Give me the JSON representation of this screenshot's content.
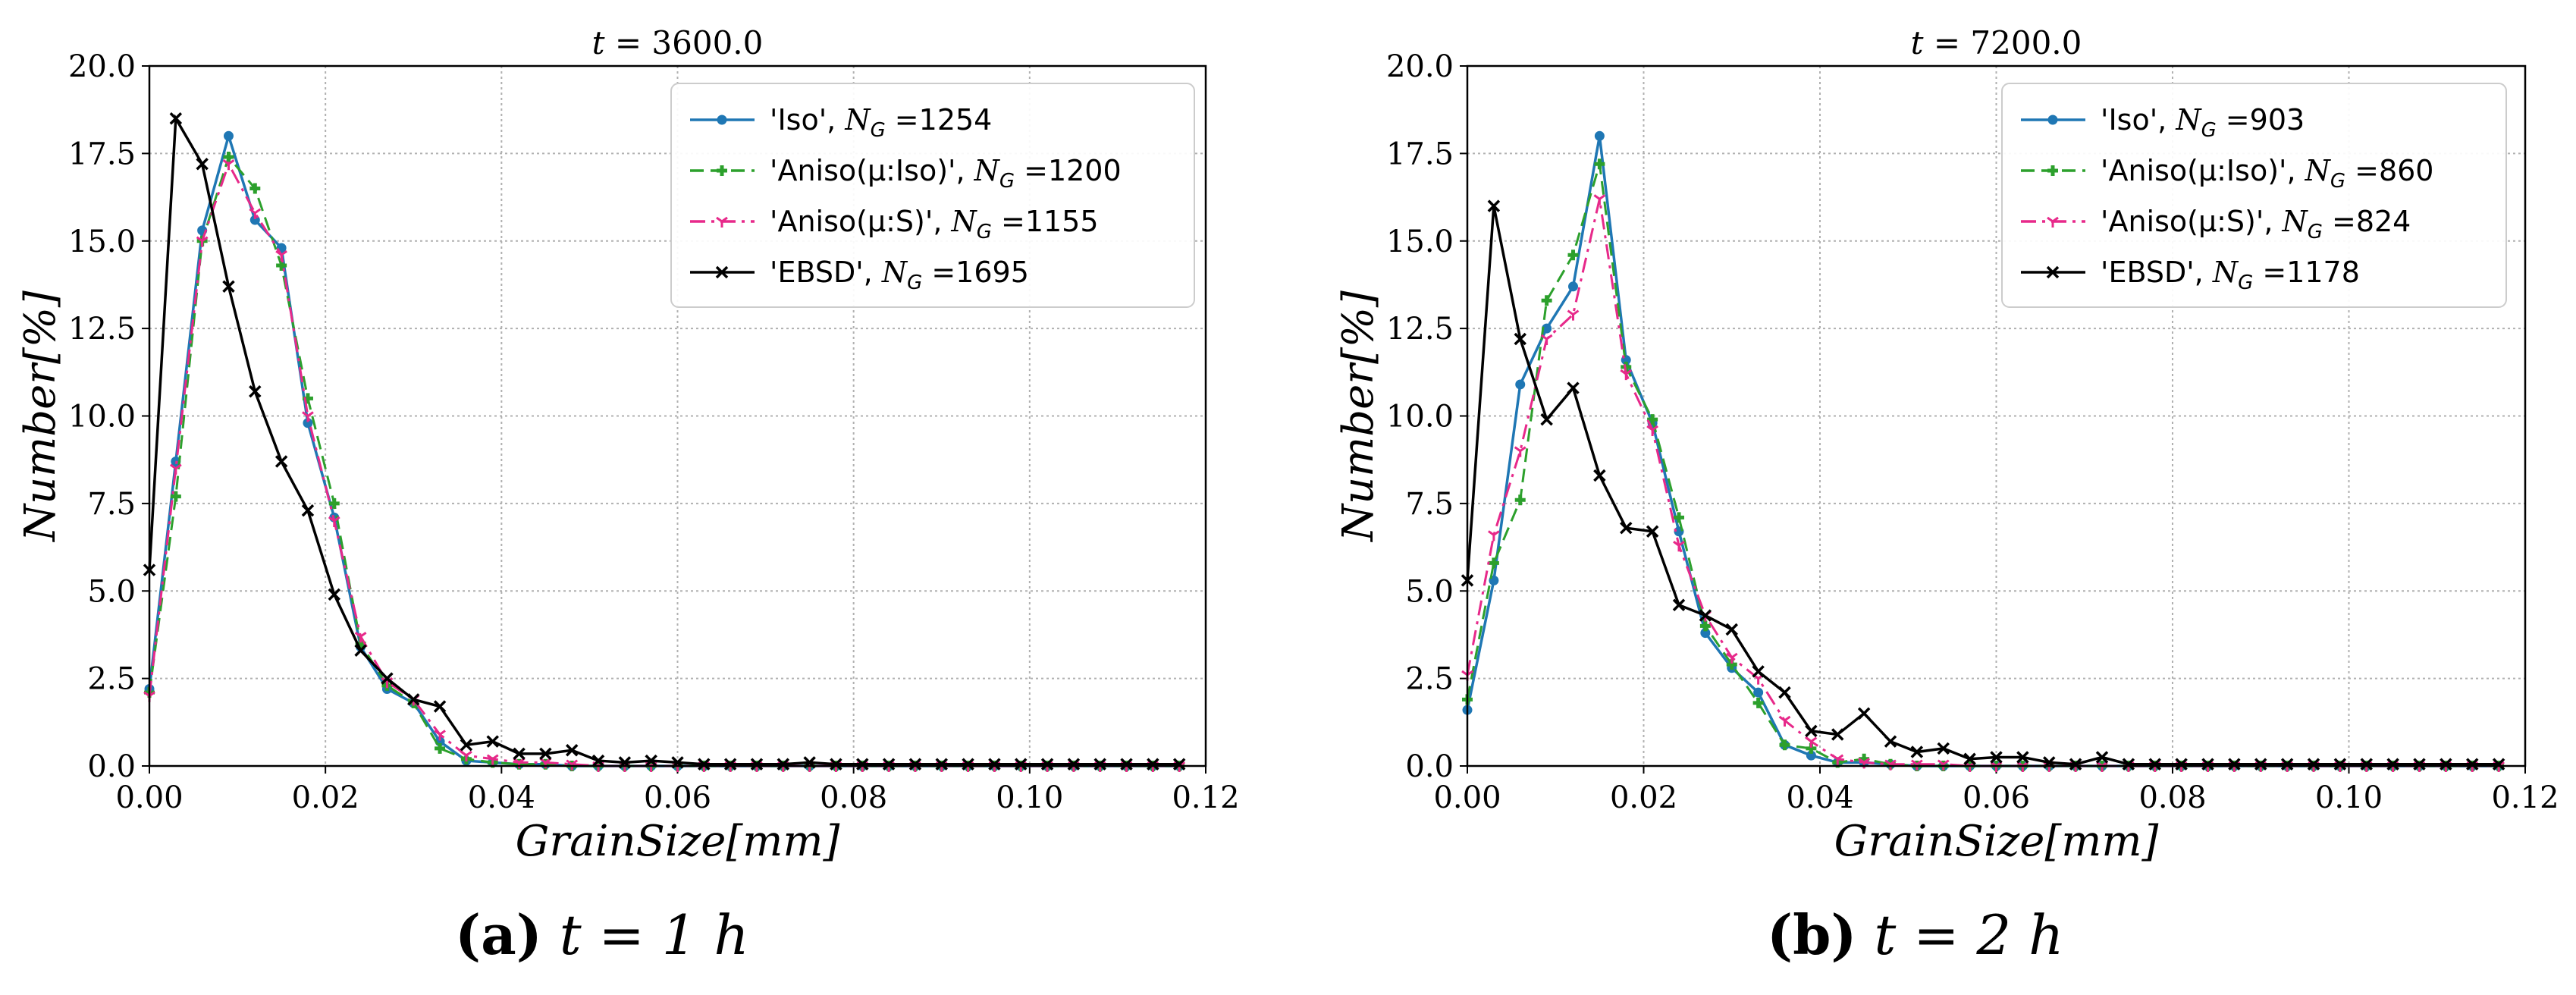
{
  "chart_data": [
    {
      "type": "line",
      "title": "t = 3600.0",
      "xlabel": "GrainSize[mm]",
      "ylabel": "Number[%]",
      "xlim": [
        0,
        0.12
      ],
      "ylim": [
        0,
        20
      ],
      "xticks": [
        "0.00",
        "0.02",
        "0.04",
        "0.06",
        "0.08",
        "0.10",
        "0.12"
      ],
      "yticks": [
        "0.0",
        "2.5",
        "5.0",
        "7.5",
        "10.0",
        "12.5",
        "15.0",
        "17.5",
        "20.0"
      ],
      "grid": true,
      "legend_position": "top-right",
      "series": [
        {
          "name": "'Iso', N_G =1254",
          "color": "#1f77b4",
          "style": "solid",
          "marker": "circle",
          "x": [
            0,
            0.003,
            0.006,
            0.009,
            0.012,
            0.015,
            0.018,
            0.021,
            0.024,
            0.027,
            0.03,
            0.033,
            0.036,
            0.039,
            0.042,
            0.045,
            0.048,
            0.051,
            0.054,
            0.057,
            0.06,
            0.063,
            0.066,
            0.069,
            0.072,
            0.075,
            0.078,
            0.081,
            0.084,
            0.087,
            0.09,
            0.093,
            0.096,
            0.099,
            0.102,
            0.105,
            0.108,
            0.111,
            0.114,
            0.117
          ],
          "y": [
            2.2,
            8.7,
            15.3,
            18.0,
            15.6,
            14.8,
            9.8,
            7.1,
            3.4,
            2.2,
            1.8,
            0.7,
            0.15,
            0.1,
            0.05,
            0.05,
            0.0,
            0.0,
            0.0,
            0.0,
            0.0,
            0.0,
            0.0,
            0.0,
            0.0,
            0.0,
            0.0,
            0.0,
            0.0,
            0.0,
            0.0,
            0.0,
            0.0,
            0.0,
            0.0,
            0.0,
            0.0,
            0.0,
            0.0,
            0.0
          ]
        },
        {
          "name": "'Aniso(μ:Iso)', N_G =1200",
          "color": "#2ca02c",
          "style": "dashed",
          "marker": "plus",
          "x": [
            0,
            0.003,
            0.006,
            0.009,
            0.012,
            0.015,
            0.018,
            0.021,
            0.024,
            0.027,
            0.03,
            0.033,
            0.036,
            0.039,
            0.042,
            0.045,
            0.048,
            0.051,
            0.054,
            0.057,
            0.06,
            0.063,
            0.066,
            0.069,
            0.072,
            0.075,
            0.078,
            0.081,
            0.084,
            0.087,
            0.09,
            0.093,
            0.096,
            0.099,
            0.102,
            0.105,
            0.108,
            0.111,
            0.114,
            0.117
          ],
          "y": [
            2.1,
            7.7,
            15.0,
            17.4,
            16.5,
            14.3,
            10.5,
            7.5,
            3.5,
            2.3,
            1.8,
            0.5,
            0.2,
            0.1,
            0.05,
            0.05,
            0.0,
            0.0,
            0.0,
            0.0,
            0.0,
            0.0,
            0.0,
            0.0,
            0.0,
            0.0,
            0.0,
            0.0,
            0.0,
            0.0,
            0.0,
            0.0,
            0.0,
            0.0,
            0.0,
            0.0,
            0.0,
            0.0,
            0.0,
            0.0
          ]
        },
        {
          "name": "'Aniso(μ:S)', N_G =1155",
          "color": "#e7298a",
          "style": "dashdot",
          "marker": "tri",
          "x": [
            0,
            0.003,
            0.006,
            0.009,
            0.012,
            0.015,
            0.018,
            0.021,
            0.024,
            0.027,
            0.03,
            0.033,
            0.036,
            0.039,
            0.042,
            0.045,
            0.048,
            0.051,
            0.054,
            0.057,
            0.06,
            0.063,
            0.066,
            0.069,
            0.072,
            0.075,
            0.078,
            0.081,
            0.084,
            0.087,
            0.09,
            0.093,
            0.096,
            0.099,
            0.102,
            0.105,
            0.108,
            0.111,
            0.114,
            0.117
          ],
          "y": [
            2.0,
            8.5,
            15.0,
            17.2,
            15.8,
            14.6,
            10.0,
            7.0,
            3.7,
            2.4,
            1.9,
            0.9,
            0.3,
            0.2,
            0.1,
            0.1,
            0.05,
            0.0,
            0.0,
            0.0,
            0.0,
            0.0,
            0.0,
            0.0,
            0.0,
            0.0,
            0.0,
            0.0,
            0.0,
            0.0,
            0.0,
            0.0,
            0.0,
            0.0,
            0.0,
            0.0,
            0.0,
            0.0,
            0.0,
            0.0
          ]
        },
        {
          "name": "'EBSD', N_G =1695",
          "color": "#000000",
          "style": "solid",
          "marker": "x",
          "x": [
            0,
            0.003,
            0.006,
            0.009,
            0.012,
            0.015,
            0.018,
            0.021,
            0.024,
            0.027,
            0.03,
            0.033,
            0.036,
            0.039,
            0.042,
            0.045,
            0.048,
            0.051,
            0.054,
            0.057,
            0.06,
            0.063,
            0.066,
            0.069,
            0.072,
            0.075,
            0.078,
            0.081,
            0.084,
            0.087,
            0.09,
            0.093,
            0.096,
            0.099,
            0.102,
            0.105,
            0.108,
            0.111,
            0.114,
            0.117
          ],
          "y": [
            5.6,
            18.5,
            17.2,
            13.7,
            10.7,
            8.7,
            7.3,
            4.9,
            3.3,
            2.5,
            1.9,
            1.7,
            0.6,
            0.7,
            0.35,
            0.35,
            0.45,
            0.15,
            0.1,
            0.15,
            0.1,
            0.05,
            0.05,
            0.05,
            0.05,
            0.1,
            0.05,
            0.05,
            0.05,
            0.05,
            0.05,
            0.05,
            0.05,
            0.05,
            0.05,
            0.05,
            0.05,
            0.05,
            0.05,
            0.05
          ]
        }
      ]
    },
    {
      "type": "line",
      "title": "t = 7200.0",
      "xlabel": "GrainSize[mm]",
      "ylabel": "Number[%]",
      "xlim": [
        0,
        0.12
      ],
      "ylim": [
        0,
        20
      ],
      "xticks": [
        "0.00",
        "0.02",
        "0.04",
        "0.06",
        "0.08",
        "0.10",
        "0.12"
      ],
      "yticks": [
        "0.0",
        "2.5",
        "5.0",
        "7.5",
        "10.0",
        "12.5",
        "15.0",
        "17.5",
        "20.0"
      ],
      "grid": true,
      "legend_position": "top-right",
      "series": [
        {
          "name": "'Iso', N_G =903",
          "color": "#1f77b4",
          "style": "solid",
          "marker": "circle",
          "x": [
            0,
            0.003,
            0.006,
            0.009,
            0.012,
            0.015,
            0.018,
            0.021,
            0.024,
            0.027,
            0.03,
            0.033,
            0.036,
            0.039,
            0.042,
            0.045,
            0.048,
            0.051,
            0.054,
            0.057,
            0.06,
            0.063,
            0.066,
            0.069,
            0.072,
            0.075,
            0.078,
            0.081,
            0.084,
            0.087,
            0.09,
            0.093,
            0.096,
            0.099,
            0.102,
            0.105,
            0.108,
            0.111,
            0.114,
            0.117
          ],
          "y": [
            1.6,
            5.3,
            10.9,
            12.5,
            13.7,
            18.0,
            11.6,
            9.8,
            6.7,
            3.8,
            2.8,
            2.1,
            0.6,
            0.3,
            0.1,
            0.1,
            0.05,
            0.0,
            0.0,
            0.0,
            0.0,
            0.0,
            0.0,
            0.0,
            0.0,
            0.0,
            0.0,
            0.0,
            0.0,
            0.0,
            0.0,
            0.0,
            0.0,
            0.0,
            0.0,
            0.0,
            0.0,
            0.0,
            0.0,
            0.0
          ]
        },
        {
          "name": "'Aniso(μ:Iso)', N_G =860",
          "color": "#2ca02c",
          "style": "dashed",
          "marker": "plus",
          "x": [
            0,
            0.003,
            0.006,
            0.009,
            0.012,
            0.015,
            0.018,
            0.021,
            0.024,
            0.027,
            0.03,
            0.033,
            0.036,
            0.039,
            0.042,
            0.045,
            0.048,
            0.051,
            0.054,
            0.057,
            0.06,
            0.063,
            0.066,
            0.069,
            0.072,
            0.075,
            0.078,
            0.081,
            0.084,
            0.087,
            0.09,
            0.093,
            0.096,
            0.099,
            0.102,
            0.105,
            0.108,
            0.111,
            0.114,
            0.117
          ],
          "y": [
            1.9,
            5.8,
            7.6,
            13.3,
            14.6,
            17.2,
            11.4,
            9.9,
            7.1,
            4.0,
            2.9,
            1.8,
            0.6,
            0.5,
            0.1,
            0.2,
            0.05,
            0.0,
            0.0,
            0.0,
            0.0,
            0.0,
            0.0,
            0.0,
            0.0,
            0.0,
            0.0,
            0.0,
            0.0,
            0.0,
            0.0,
            0.0,
            0.0,
            0.0,
            0.0,
            0.0,
            0.0,
            0.0,
            0.0,
            0.0
          ]
        },
        {
          "name": "'Aniso(μ:S)', N_G =824",
          "color": "#e7298a",
          "style": "dashdot",
          "marker": "tri",
          "x": [
            0,
            0.003,
            0.006,
            0.009,
            0.012,
            0.015,
            0.018,
            0.021,
            0.024,
            0.027,
            0.03,
            0.033,
            0.036,
            0.039,
            0.042,
            0.045,
            0.048,
            0.051,
            0.054,
            0.057,
            0.06,
            0.063,
            0.066,
            0.069,
            0.072,
            0.075,
            0.078,
            0.081,
            0.084,
            0.087,
            0.09,
            0.093,
            0.096,
            0.099,
            0.102,
            0.105,
            0.108,
            0.111,
            0.114,
            0.117
          ],
          "y": [
            2.6,
            6.6,
            9.0,
            12.2,
            12.9,
            16.2,
            11.2,
            9.6,
            6.3,
            4.3,
            3.1,
            2.5,
            1.3,
            0.7,
            0.2,
            0.1,
            0.05,
            0.05,
            0.05,
            0.0,
            0.0,
            0.0,
            0.0,
            0.0,
            0.0,
            0.0,
            0.0,
            0.0,
            0.0,
            0.0,
            0.0,
            0.0,
            0.0,
            0.0,
            0.0,
            0.0,
            0.0,
            0.0,
            0.0,
            0.0
          ]
        },
        {
          "name": "'EBSD', N_G =1178",
          "color": "#000000",
          "style": "solid",
          "marker": "x",
          "x": [
            0,
            0.003,
            0.006,
            0.009,
            0.012,
            0.015,
            0.018,
            0.021,
            0.024,
            0.027,
            0.03,
            0.033,
            0.036,
            0.039,
            0.042,
            0.045,
            0.048,
            0.051,
            0.054,
            0.057,
            0.06,
            0.063,
            0.066,
            0.069,
            0.072,
            0.075,
            0.078,
            0.081,
            0.084,
            0.087,
            0.09,
            0.093,
            0.096,
            0.099,
            0.102,
            0.105,
            0.108,
            0.111,
            0.114,
            0.117
          ],
          "y": [
            5.3,
            16.0,
            12.2,
            9.9,
            10.8,
            8.3,
            6.8,
            6.7,
            4.6,
            4.3,
            3.9,
            2.7,
            2.1,
            1.0,
            0.9,
            1.5,
            0.7,
            0.4,
            0.5,
            0.2,
            0.25,
            0.25,
            0.1,
            0.05,
            0.25,
            0.05,
            0.05,
            0.05,
            0.05,
            0.05,
            0.05,
            0.05,
            0.05,
            0.05,
            0.05,
            0.05,
            0.05,
            0.05,
            0.05,
            0.05
          ]
        }
      ]
    }
  ],
  "captions": [
    {
      "label": "(a)",
      "text": "t = 1 h"
    },
    {
      "label": "(b)",
      "text": "t = 2 h"
    }
  ]
}
